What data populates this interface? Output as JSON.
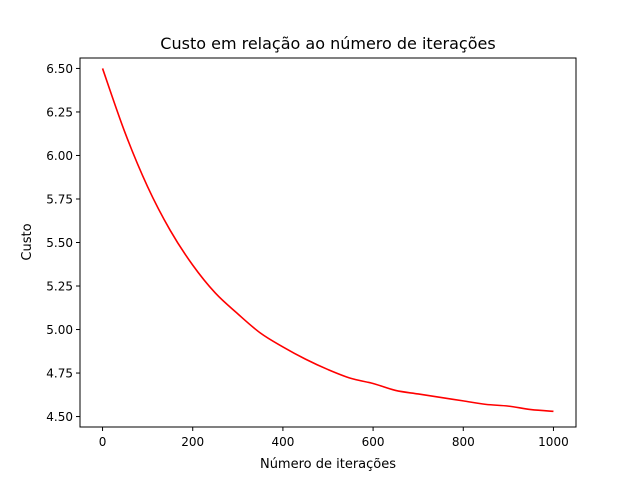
{
  "chart_data": {
    "type": "line",
    "title": "Custo em relação ao número de iterações",
    "xlabel": "Número de iterações",
    "ylabel": "Custo",
    "xlim": [
      -50,
      1050
    ],
    "ylim": [
      4.44,
      6.56
    ],
    "xticks": [
      0,
      200,
      400,
      600,
      800,
      1000
    ],
    "xtick_labels": [
      "0",
      "200",
      "400",
      "600",
      "800",
      "1000"
    ],
    "yticks": [
      4.5,
      4.75,
      5.0,
      5.25,
      5.5,
      5.75,
      6.0,
      6.25,
      6.5
    ],
    "ytick_labels": [
      "4.50",
      "4.75",
      "5.00",
      "5.25",
      "5.50",
      "5.75",
      "6.00",
      "6.25",
      "6.50"
    ],
    "grid": false,
    "legend": "none",
    "series": [
      {
        "color": "#ff0000",
        "x": [
          0,
          50,
          100,
          150,
          200,
          250,
          300,
          350,
          400,
          450,
          500,
          550,
          600,
          650,
          700,
          750,
          800,
          850,
          900,
          950,
          1000
        ],
        "y": [
          6.5,
          6.13,
          5.82,
          5.57,
          5.37,
          5.21,
          5.09,
          4.98,
          4.9,
          4.83,
          4.77,
          4.72,
          4.69,
          4.65,
          4.63,
          4.61,
          4.59,
          4.57,
          4.56,
          4.54,
          4.53
        ]
      }
    ]
  }
}
